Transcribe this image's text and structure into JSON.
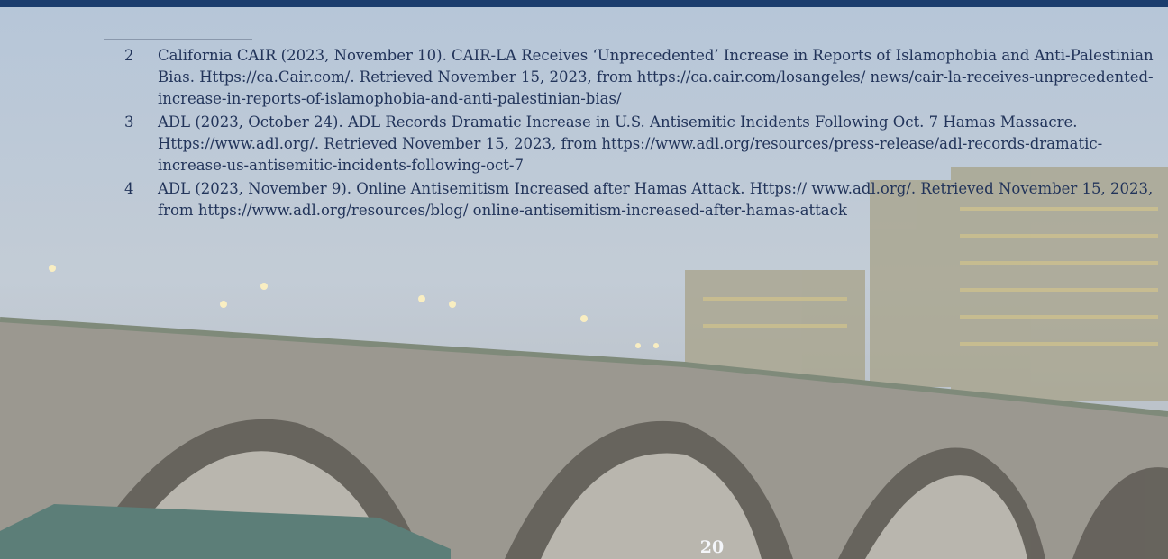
{
  "footnotes": [
    {
      "number": "2",
      "text": "California CAIR (2023, November 10). CAIR-LA Receives ‘Unprecedented’ Increase in Reports of Islamophobia and Anti-Palestinian Bias. Https://ca.Cair.com/. Retrieved November 15, 2023, from https://ca.cair.com/losangeles/ news/cair-la-receives-unprecedented-increase-in-reports-of-islamophobia-and-anti-palestinian-bias/"
    },
    {
      "number": "3",
      "text": "ADL (2023, October 24). ADL Records Dramatic Increase in U.S. Antisemitic Incidents Following Oct. 7 Hamas Massacre. Https://www.adl.org/. Retrieved November 15, 2023, from https://www.adl.org/resources/press-release/adl-records-dramatic-increase-us-antisemitic-incidents-following-oct-7"
    },
    {
      "number": "4",
      "text": "ADL (2023, November 9). Online Antisemitism Increased after Hamas Attack. Https:// www.adl.org/. Retrieved November 15, 2023, from https://www.adl.org/resources/blog/ online-antisemitism-increased-after-hamas-attack"
    }
  ],
  "page_number": "20"
}
